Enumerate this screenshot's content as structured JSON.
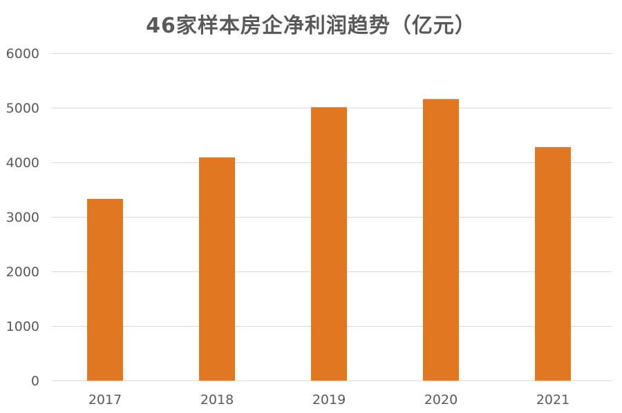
{
  "chart_data": {
    "type": "bar",
    "title": "46家样本房企净利润趋势（亿元）",
    "categories": [
      "2017",
      "2018",
      "2019",
      "2020",
      "2021"
    ],
    "series": [
      {
        "values": [
          3330,
          4090,
          5010,
          5160,
          4280
        ]
      }
    ],
    "ylim": [
      0,
      6000
    ],
    "yticks": [
      0,
      1000,
      2000,
      3000,
      4000,
      5000,
      6000
    ],
    "grid": true,
    "legend": "none",
    "xlabel": "",
    "ylabel": ""
  },
  "colors": {
    "bar": "#e27722"
  }
}
